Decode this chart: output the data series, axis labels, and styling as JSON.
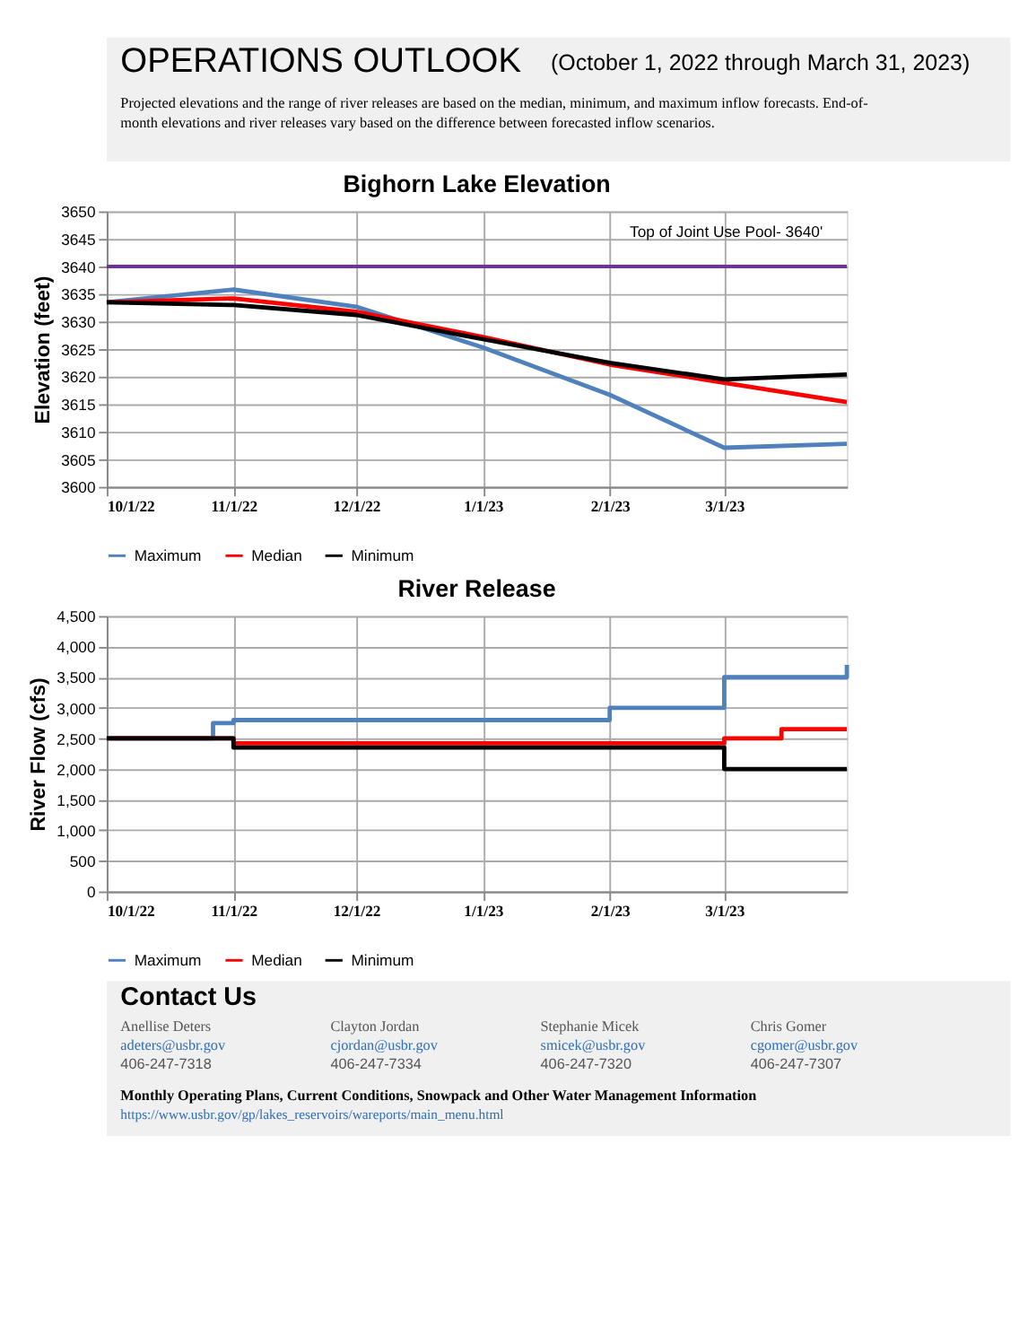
{
  "chart_data": [
    {
      "type": "other",
      "title": "OPERATIONS OUTLOOK",
      "subtitle": "(October 1, 2022 through March 31, 2023)",
      "annotations": [
        "Projected elevations and the range of river releases are based on the median, minimum, and maximum inflow forecasts.  End-of-month elevations and river releases vary based on the difference between forecasted inflow scenarios."
      ]
    },
    {
      "type": "line",
      "title": "Bighorn Lake Elevation",
      "ylabel": "Elevation (feet)",
      "x": [
        "2022-10-01",
        "2022-11-01",
        "2022-12-01",
        "2023-01-01",
        "2023-02-01",
        "2023-03-01",
        "2023-03-31"
      ],
      "series": [
        {
          "name": "Maximum",
          "color": "#4f81bd",
          "values": [
            3633.5,
            3635.8,
            3632.7,
            3625.3,
            3616.7,
            3607.1,
            3607.8
          ]
        },
        {
          "name": "Median",
          "color": "#ff0000",
          "values": [
            3633.5,
            3634.2,
            3631.8,
            3627.2,
            3622.2,
            3618.9,
            3615.4
          ]
        },
        {
          "name": "Minimum",
          "color": "#000000",
          "values": [
            3633.5,
            3633.0,
            3631.2,
            3626.8,
            3622.5,
            3619.5,
            3620.4
          ]
        }
      ],
      "ylim": [
        3600,
        3650
      ],
      "yticks": [
        3600,
        3605,
        3610,
        3615,
        3620,
        3625,
        3630,
        3635,
        3640,
        3645,
        3650
      ],
      "xlim": [
        "2022-10-01",
        "2023-03-31"
      ],
      "xticks": [
        {
          "value": "2022-10-01",
          "label": "10/1/22"
        },
        {
          "value": "2022-11-01",
          "label": "11/1/22"
        },
        {
          "value": "2022-12-01",
          "label": "12/1/22"
        },
        {
          "value": "2023-01-01",
          "label": "1/1/23"
        },
        {
          "value": "2023-02-01",
          "label": "2/1/23"
        },
        {
          "value": "2023-03-01",
          "label": "3/1/23"
        }
      ],
      "ref_lines": [
        {
          "axis": "y",
          "value": 3640,
          "label": "Top of Joint Use Pool- 3640'",
          "color": "#7030a0"
        }
      ],
      "grid": true,
      "legend": "bottom",
      "line_style": "solid"
    },
    {
      "type": "step",
      "title": "River Release",
      "ylabel": "River Flow (cfs)",
      "series": [
        {
          "name": "Maximum",
          "color": "#4f81bd",
          "x": [
            "2022-10-01",
            "2022-10-27",
            "2022-11-01",
            "2023-02-01",
            "2023-03-01",
            "2023-03-31"
          ],
          "values": [
            2500,
            2750,
            2800,
            3000,
            3500,
            3700
          ]
        },
        {
          "name": "Median",
          "color": "#ff0000",
          "x": [
            "2022-10-01",
            "2022-11-01",
            "2023-03-01",
            "2023-03-15",
            "2023-03-31"
          ],
          "values": [
            2500,
            2420,
            2500,
            2650,
            2650
          ]
        },
        {
          "name": "Minimum",
          "color": "#000000",
          "x": [
            "2022-10-01",
            "2022-11-01",
            "2023-03-01",
            "2023-03-31"
          ],
          "values": [
            2500,
            2350,
            2000,
            2000
          ]
        }
      ],
      "ylim": [
        0,
        4500
      ],
      "yticks": [
        0,
        500,
        {
          "value": 1000,
          "label": "1,000"
        },
        {
          "value": 1500,
          "label": "1,500"
        },
        {
          "value": 2000,
          "label": "2,000"
        },
        {
          "value": 2500,
          "label": "2,500"
        },
        {
          "value": 3000,
          "label": "3,000"
        },
        {
          "value": 3500,
          "label": "3,500"
        },
        {
          "value": 4000,
          "label": "4,000"
        },
        {
          "value": 4500,
          "label": "4,500"
        }
      ],
      "xlim": [
        "2022-10-01",
        "2023-03-31"
      ],
      "xticks": [
        {
          "value": "2022-10-01",
          "label": "10/1/22"
        },
        {
          "value": "2022-11-01",
          "label": "11/1/22"
        },
        {
          "value": "2022-12-01",
          "label": "12/1/22"
        },
        {
          "value": "2023-01-01",
          "label": "1/1/23"
        },
        {
          "value": "2023-02-01",
          "label": "2/1/23"
        },
        {
          "value": "2023-03-01",
          "label": "3/1/23"
        }
      ],
      "grid": true,
      "legend": "bottom",
      "line_style": "solid"
    },
    {
      "type": "other",
      "title": "Contact Us",
      "annotations": [
        "Anellise Deters",
        "adeters@usbr.gov",
        "406-247-7318",
        "Clayton Jordan",
        "cjordan@usbr.gov",
        "406-247-7334",
        "Stephanie Micek",
        "smicek@usbr.gov",
        "406-247-7320",
        "Chris Gomer",
        "cgomer@usbr.gov",
        "406-247-7307",
        "Monthly Operating Plans, Current Conditions, Snowpack and Other Water Management Information",
        "https://www.usbr.gov/gp/lakes_reservoirs/wareports/main_menu.html"
      ]
    }
  ]
}
